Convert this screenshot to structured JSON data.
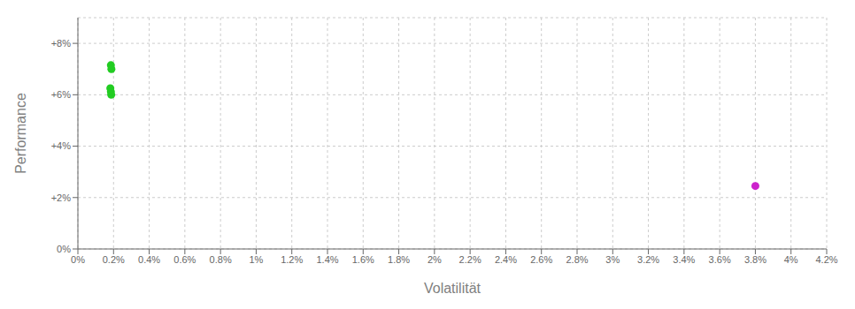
{
  "chart_data": {
    "type": "scatter",
    "xlabel": "Volatilität",
    "ylabel": "Performance",
    "xlim": [
      0.0,
      0.042
    ],
    "ylim": [
      0.0,
      0.09
    ],
    "xticks": [
      {
        "value": 0.0,
        "label": "0%"
      },
      {
        "value": 0.002,
        "label": "0.2%"
      },
      {
        "value": 0.004,
        "label": "0.4%"
      },
      {
        "value": 0.006,
        "label": "0.6%"
      },
      {
        "value": 0.008,
        "label": "0.8%"
      },
      {
        "value": 0.01,
        "label": "1%"
      },
      {
        "value": 0.012,
        "label": "1.2%"
      },
      {
        "value": 0.014,
        "label": "1.4%"
      },
      {
        "value": 0.016,
        "label": "1.6%"
      },
      {
        "value": 0.018,
        "label": "1.8%"
      },
      {
        "value": 0.02,
        "label": "2%"
      },
      {
        "value": 0.022,
        "label": "2.2%"
      },
      {
        "value": 0.024,
        "label": "2.4%"
      },
      {
        "value": 0.026,
        "label": "2.6%"
      },
      {
        "value": 0.028,
        "label": "2.8%"
      },
      {
        "value": 0.03,
        "label": "3%"
      },
      {
        "value": 0.032,
        "label": "3.2%"
      },
      {
        "value": 0.034,
        "label": "3.4%"
      },
      {
        "value": 0.036,
        "label": "3.6%"
      },
      {
        "value": 0.038,
        "label": "3.8%"
      },
      {
        "value": 0.04,
        "label": "4%"
      },
      {
        "value": 0.042,
        "label": "4.2%"
      }
    ],
    "yticks": [
      {
        "value": 0.0,
        "label": "0%"
      },
      {
        "value": 0.02,
        "label": "+2%"
      },
      {
        "value": 0.04,
        "label": "+4%"
      },
      {
        "value": 0.06,
        "label": "+6%"
      },
      {
        "value": 0.08,
        "label": "+8%"
      }
    ],
    "grid": true,
    "series": [
      {
        "color": "#22cc22",
        "x": [
          0.00185,
          0.00188,
          0.00182,
          0.00185,
          0.00187
        ],
        "values": [
          0.0715,
          0.07,
          0.0625,
          0.0612,
          0.06
        ]
      },
      {
        "color": "#cc22cc",
        "x": [
          0.038
        ],
        "values": [
          0.0245
        ]
      }
    ]
  }
}
